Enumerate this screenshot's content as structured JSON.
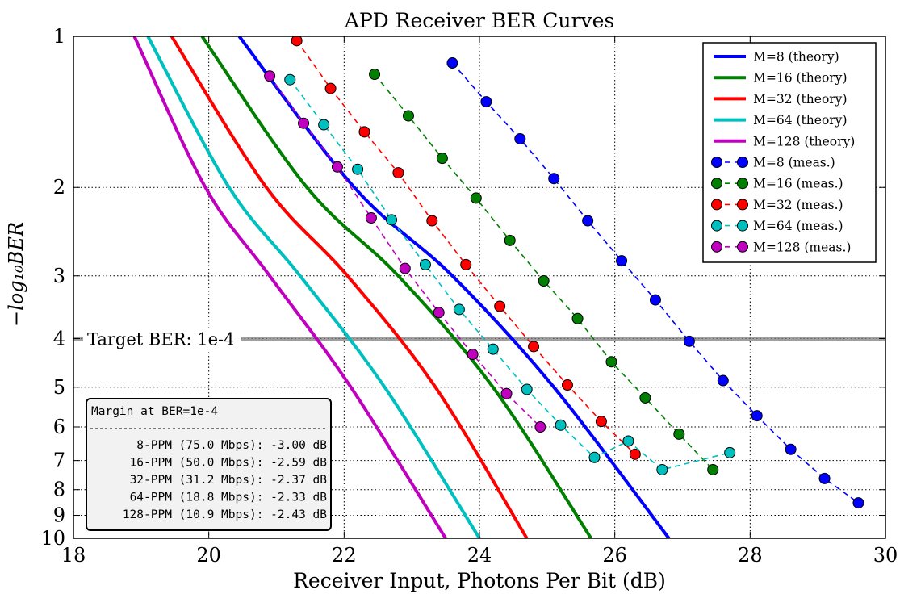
{
  "chart_data": {
    "type": "line",
    "title": "APD Receiver BER Curves",
    "xlabel": "Receiver Input, Photons Per Bit (dB)",
    "ylabel": "−log₁₀BER",
    "xlim": [
      18,
      30
    ],
    "ylim": [
      1,
      10
    ],
    "yscale": "log",
    "grid": true,
    "legend_position": "top-right",
    "x_ticks": [
      "18",
      "20",
      "22",
      "24",
      "26",
      "28",
      "30"
    ],
    "y_ticks": [
      "1",
      "2",
      "3",
      "4",
      "5",
      "6",
      "7",
      "8",
      "9",
      "10"
    ],
    "series": [
      {
        "name": "M=8 (theory)",
        "kind": "theory",
        "color": "#0000ff",
        "x": [
          20.45,
          22.15,
          23.6,
          25.1,
          26.8
        ],
        "y": [
          1,
          2,
          3,
          5,
          10
        ]
      },
      {
        "name": "M=16 (theory)",
        "kind": "theory",
        "color": "#007f00",
        "x": [
          19.9,
          21.45,
          22.8,
          24.2,
          25.65
        ],
        "y": [
          1,
          2,
          3,
          5,
          10
        ]
      },
      {
        "name": "M=32 (theory)",
        "kind": "theory",
        "color": "#ff0000",
        "x": [
          19.45,
          20.85,
          22.05,
          23.35,
          24.7
        ],
        "y": [
          1,
          2,
          3,
          5,
          10
        ]
      },
      {
        "name": "M=64 (theory)",
        "kind": "theory",
        "color": "#00bfbf",
        "x": [
          19.1,
          20.3,
          21.35,
          22.6,
          24.0
        ],
        "y": [
          1,
          2,
          3,
          5,
          10
        ]
      },
      {
        "name": "M=128 (theory)",
        "kind": "theory",
        "color": "#bf00bf",
        "x": [
          18.9,
          19.95,
          20.9,
          22.1,
          23.5
        ],
        "y": [
          1,
          2,
          3,
          5,
          10
        ]
      },
      {
        "name": "M=8 (meas.)",
        "kind": "meas",
        "color": "#0000ff",
        "x": [
          23.6,
          24.1,
          24.6,
          25.1,
          25.6,
          26.1,
          26.6,
          27.1,
          27.6,
          28.1,
          28.6,
          29.1,
          29.6
        ],
        "y": [
          1.13,
          1.35,
          1.6,
          1.92,
          2.33,
          2.8,
          3.35,
          4.05,
          4.85,
          5.7,
          6.65,
          7.6,
          8.5
        ]
      },
      {
        "name": "M=16 (meas.)",
        "kind": "meas",
        "color": "#007f00",
        "x": [
          22.45,
          22.95,
          23.45,
          23.95,
          24.45,
          24.95,
          25.45,
          25.95,
          26.45,
          26.95,
          27.45
        ],
        "y": [
          1.19,
          1.44,
          1.75,
          2.1,
          2.55,
          3.07,
          3.65,
          4.45,
          5.25,
          6.2,
          7.3
        ]
      },
      {
        "name": "M=32 (meas.)",
        "kind": "meas",
        "color": "#ff0000",
        "x": [
          21.3,
          21.8,
          22.3,
          22.8,
          23.3,
          23.8,
          24.3,
          24.8,
          25.3,
          25.8,
          26.3
        ],
        "y": [
          1.02,
          1.27,
          1.55,
          1.87,
          2.33,
          2.85,
          3.45,
          4.15,
          4.95,
          5.85,
          6.8
        ]
      },
      {
        "name": "M=64 (meas.)",
        "kind": "meas",
        "color": "#00bfbf",
        "x": [
          21.2,
          21.7,
          22.2,
          22.7,
          23.2,
          23.7,
          24.2,
          24.7,
          25.2,
          25.7,
          26.2,
          26.7,
          27.7
        ],
        "y": [
          1.22,
          1.5,
          1.84,
          2.32,
          2.85,
          3.5,
          4.2,
          5.05,
          5.95,
          6.9,
          6.4,
          7.3,
          6.75
        ]
      },
      {
        "name": "M=128 (meas.)",
        "kind": "meas",
        "color": "#bf00bf",
        "x": [
          20.9,
          21.4,
          21.9,
          22.4,
          22.9,
          23.4,
          23.9,
          24.4,
          24.9
        ],
        "y": [
          1.2,
          1.49,
          1.82,
          2.3,
          2.9,
          3.55,
          4.3,
          5.15,
          6.0
        ]
      }
    ],
    "target_line": {
      "y": 4,
      "label": "Target BER: 1e-4",
      "color": "#808080"
    },
    "margin_box": {
      "title": "Margin at BER=1e-4",
      "lines": [
        "  8-PPM (75.0 Mbps): -3.00 dB",
        " 16-PPM (50.0 Mbps): -2.59 dB",
        " 32-PPM (31.2 Mbps): -2.37 dB",
        " 64-PPM (18.8 Mbps): -2.33 dB",
        "128-PPM (10.9 Mbps): -2.43 dB"
      ]
    }
  }
}
